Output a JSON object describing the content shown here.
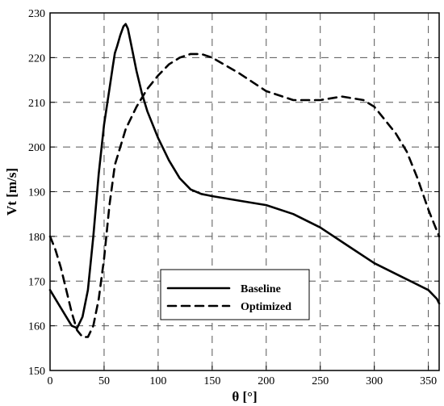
{
  "chart_data": {
    "type": "line",
    "xlabel": "θ [°]",
    "ylabel": "Vt [m/s]",
    "xlim": [
      0,
      360
    ],
    "ylim": [
      150,
      230
    ],
    "xticks": [
      0,
      50,
      100,
      150,
      200,
      250,
      300,
      350
    ],
    "yticks": [
      150,
      160,
      170,
      180,
      190,
      200,
      210,
      220,
      230
    ],
    "grid": true,
    "legend_position": "lower-center",
    "series": [
      {
        "name": "Baseline",
        "style": "solid",
        "x": [
          0,
          5,
          10,
          15,
          20,
          25,
          30,
          35,
          40,
          45,
          50,
          55,
          58,
          60,
          62,
          65,
          68,
          70,
          72,
          75,
          80,
          85,
          90,
          100,
          110,
          120,
          130,
          140,
          150,
          175,
          200,
          225,
          250,
          275,
          300,
          325,
          350,
          358,
          360
        ],
        "y": [
          168,
          166,
          164,
          162,
          160,
          159.5,
          162,
          168,
          180,
          194,
          205,
          213,
          218,
          221,
          222.5,
          225,
          227,
          227.5,
          226.5,
          223,
          217,
          212,
          208,
          202,
          197,
          193,
          190.5,
          189.5,
          189,
          188,
          187,
          185,
          182,
          178,
          174,
          171,
          168,
          166,
          165
        ]
      },
      {
        "name": "Optimized",
        "style": "dashed",
        "x": [
          0,
          5,
          10,
          15,
          20,
          25,
          30,
          35,
          40,
          45,
          50,
          55,
          60,
          70,
          80,
          90,
          100,
          110,
          120,
          130,
          140,
          150,
          175,
          200,
          225,
          250,
          270,
          290,
          300,
          310,
          320,
          330,
          340,
          350,
          355,
          360
        ],
        "y": [
          180,
          177,
          173,
          168,
          163,
          159,
          157.5,
          157.5,
          160,
          166,
          175,
          187,
          196,
          204,
          209,
          213,
          216,
          218.5,
          220,
          220.8,
          220.8,
          220,
          216.5,
          212.5,
          210.5,
          210.5,
          211.3,
          210.5,
          209,
          206,
          203,
          199,
          193,
          186,
          183,
          180
        ]
      }
    ]
  }
}
